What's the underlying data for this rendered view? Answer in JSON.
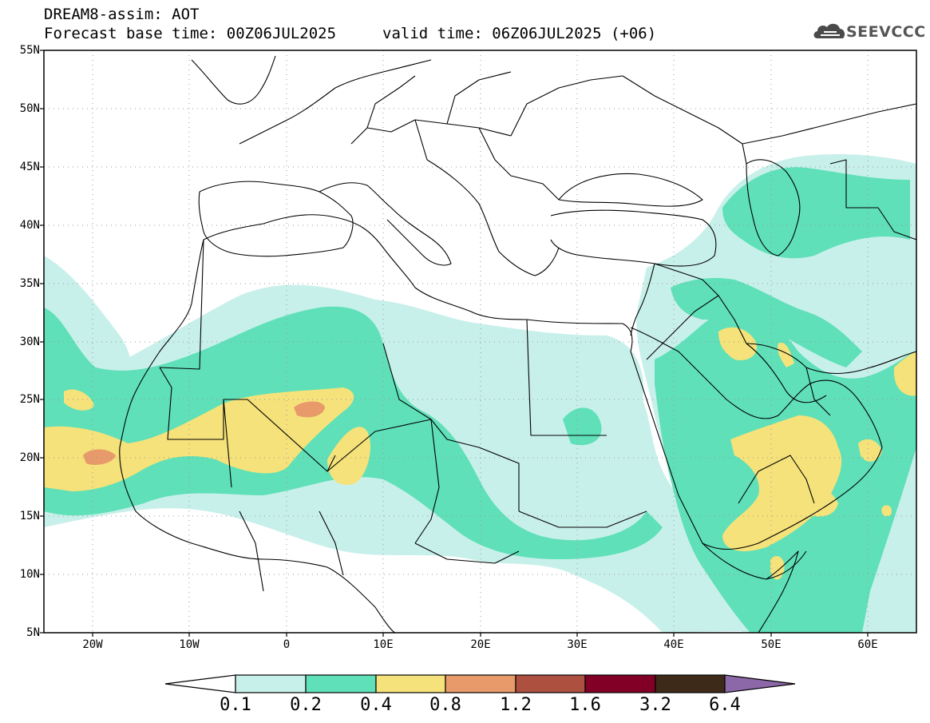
{
  "header": {
    "model_line": "DREAM8-assim: AOT",
    "base_time_line": "Forecast base time: 00Z06JUL2025",
    "valid_time_line": "valid time: 06Z06JUL2025 (+06)"
  },
  "logo": {
    "text": "SEEVCCC",
    "icon": "cloud-icon"
  },
  "axes": {
    "lat_labels": [
      "55N",
      "50N",
      "45N",
      "40N",
      "35N",
      "30N",
      "25N",
      "20N",
      "15N",
      "10N",
      "5N"
    ],
    "lon_labels": [
      "20W",
      "10W",
      "0",
      "10E",
      "20E",
      "30E",
      "40E",
      "50E",
      "60E"
    ],
    "lat_range": [
      5,
      55
    ],
    "lon_range": [
      -25,
      65
    ]
  },
  "colorbar": {
    "thresholds": [
      "0.1",
      "0.2",
      "0.4",
      "0.8",
      "1.2",
      "1.6",
      "3.2",
      "6.4"
    ],
    "colors": [
      "#ffffff",
      "#c8f0ea",
      "#5fe0b8",
      "#f5e27a",
      "#e89a6a",
      "#ae5040",
      "#820026",
      "#3d2a18",
      "#8d68a8"
    ]
  },
  "palette": {
    "c1": "#c8f0ea",
    "c2": "#5fe0b8",
    "c3": "#f5e27a",
    "c4": "#e89a6a",
    "border": "#000000",
    "grid": "#9a9a9a"
  }
}
